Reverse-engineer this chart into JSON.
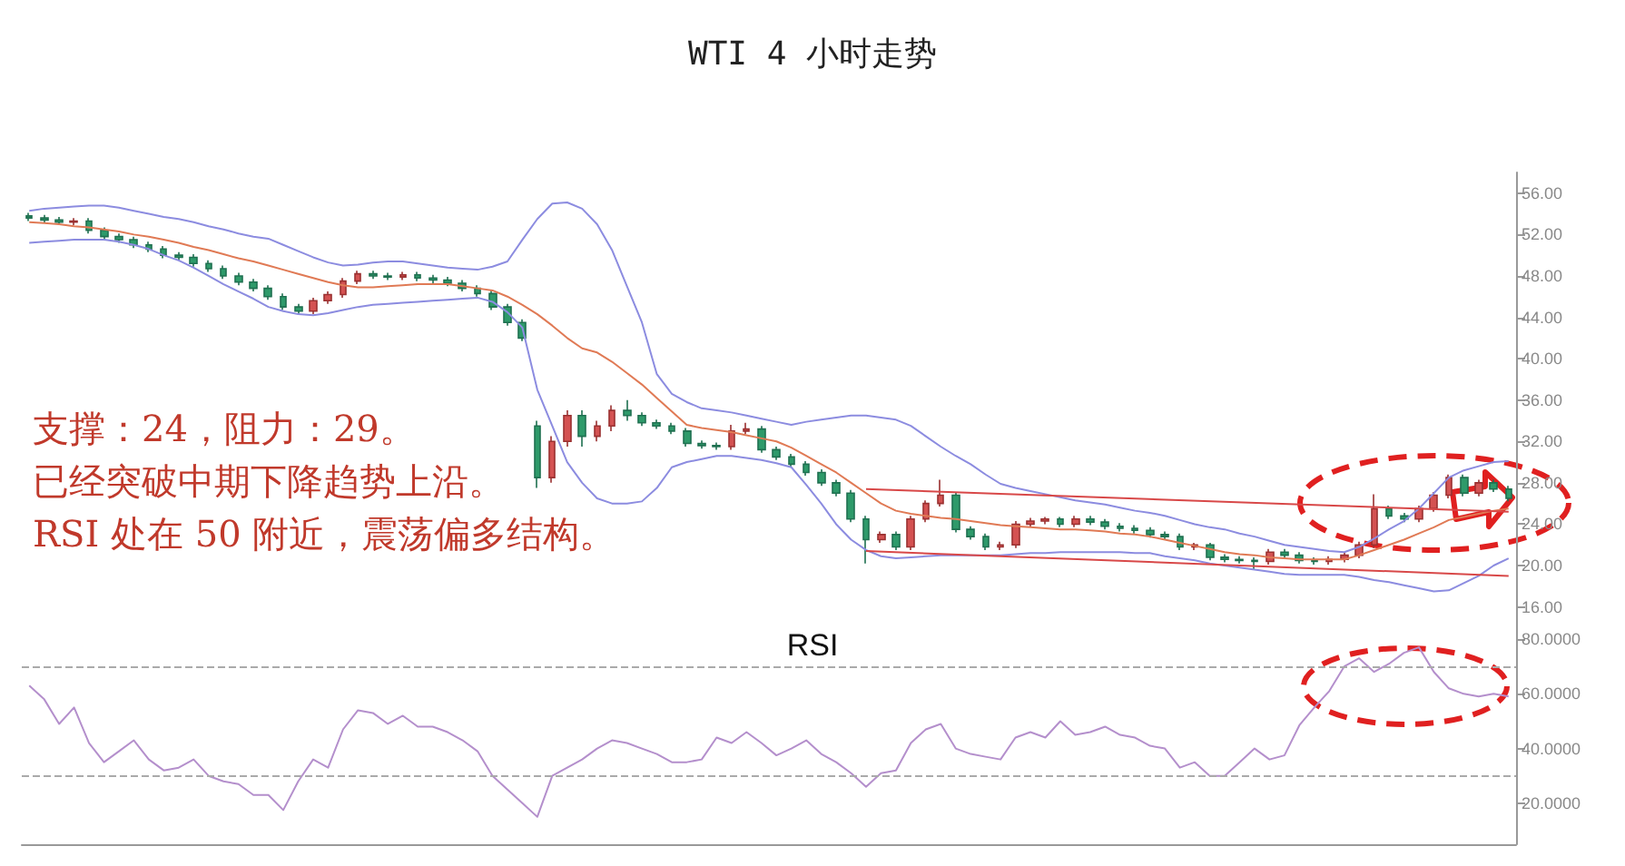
{
  "chart_data": [
    {
      "type": "candlestick",
      "title": "WTI 4 小时走势",
      "categories": [
        null,
        null,
        null,
        null,
        null,
        null,
        null,
        null,
        null,
        null,
        null,
        null,
        null,
        null,
        null,
        null,
        null,
        null,
        null,
        null,
        null,
        null,
        null,
        null,
        null,
        null,
        null,
        null,
        null,
        null,
        null,
        null,
        null,
        null,
        null,
        null,
        null,
        null,
        null,
        null,
        null,
        null,
        null,
        null,
        null,
        null,
        null,
        null,
        null,
        null,
        null,
        null,
        null,
        null,
        null,
        null,
        null,
        null,
        null,
        null,
        null,
        null,
        null,
        null,
        null,
        null,
        null,
        null,
        null,
        null,
        null,
        null,
        null,
        null,
        null,
        null,
        null,
        null,
        null,
        null,
        null,
        null,
        null,
        null,
        null,
        null,
        null,
        null,
        null,
        null,
        null,
        null,
        null,
        null,
        null,
        null,
        null,
        null,
        null,
        null
      ],
      "ylim": [
        15,
        58
      ],
      "yticks": [
        {
          "value": 16,
          "label": "16.00"
        },
        {
          "value": 20,
          "label": "20.00"
        },
        {
          "value": 24,
          "label": "24.00"
        },
        {
          "value": 28,
          "label": "28.00"
        },
        {
          "value": 32,
          "label": "32.00"
        },
        {
          "value": 36,
          "label": "36.00"
        },
        {
          "value": 40,
          "label": "40.00"
        },
        {
          "value": 44,
          "label": "44.00"
        },
        {
          "value": 48,
          "label": "48.00"
        },
        {
          "value": 52,
          "label": "52.00"
        },
        {
          "value": 56,
          "label": "56.00"
        }
      ],
      "tick_labels": "y",
      "marker": "none",
      "annotations": [
        "支撑：24，阻力：29。",
        "已经突破中期下降趋势上沿。",
        "RSI 处在 50 附近，震荡偏多结构。"
      ],
      "series": [
        {
          "ohlc": [
            [
              53.8,
              54.1,
              53.3,
              53.6
            ],
            [
              53.6,
              53.9,
              53.1,
              53.4
            ],
            [
              53.4,
              53.7,
              52.9,
              53.2
            ],
            [
              53.2,
              53.6,
              52.9,
              53.3
            ],
            [
              53.3,
              53.6,
              52.1,
              52.4
            ],
            [
              52.4,
              52.7,
              51.5,
              51.8
            ],
            [
              51.8,
              52.1,
              51.2,
              51.5
            ],
            [
              51.5,
              51.8,
              50.7,
              51.0
            ],
            [
              51.0,
              51.3,
              50.3,
              50.6
            ],
            [
              50.6,
              50.9,
              49.7,
              50.0
            ],
            [
              50.0,
              50.3,
              49.5,
              49.8
            ],
            [
              49.8,
              50.1,
              48.9,
              49.2
            ],
            [
              49.2,
              49.5,
              48.4,
              48.7
            ],
            [
              48.7,
              49.0,
              47.7,
              48.0
            ],
            [
              48.0,
              48.3,
              47.1,
              47.4
            ],
            [
              47.4,
              47.7,
              46.5,
              46.8
            ],
            [
              46.8,
              47.1,
              45.7,
              46.0
            ],
            [
              46.0,
              46.3,
              44.7,
              45.0
            ],
            [
              45.0,
              45.3,
              44.3,
              44.6
            ],
            [
              44.6,
              45.9,
              44.3,
              45.6
            ],
            [
              45.6,
              46.5,
              45.3,
              46.2
            ],
            [
              46.2,
              47.8,
              45.9,
              47.5
            ],
            [
              47.5,
              48.5,
              47.2,
              48.2
            ],
            [
              48.2,
              48.5,
              47.7,
              48.0
            ],
            [
              48.0,
              48.3,
              47.6,
              47.9
            ],
            [
              47.9,
              48.4,
              47.6,
              48.1
            ],
            [
              48.1,
              48.4,
              47.5,
              47.8
            ],
            [
              47.8,
              48.1,
              47.3,
              47.6
            ],
            [
              47.6,
              47.9,
              47.0,
              47.3
            ],
            [
              47.3,
              47.6,
              46.5,
              46.8
            ],
            [
              46.8,
              47.1,
              46.0,
              46.3
            ],
            [
              46.3,
              46.6,
              44.7,
              45.0
            ],
            [
              45.0,
              45.3,
              43.2,
              43.5
            ],
            [
              43.5,
              43.8,
              41.7,
              42.0
            ],
            [
              33.5,
              34.0,
              27.5,
              28.5
            ],
            [
              28.5,
              32.5,
              28.0,
              32.0
            ],
            [
              32.0,
              35.0,
              31.5,
              34.5
            ],
            [
              34.5,
              35.0,
              31.5,
              32.5
            ],
            [
              32.5,
              34.0,
              32.0,
              33.5
            ],
            [
              33.5,
              35.5,
              33.0,
              35.0
            ],
            [
              35.0,
              36.0,
              34.0,
              34.5
            ],
            [
              34.5,
              34.8,
              33.5,
              33.8
            ],
            [
              33.8,
              34.1,
              33.2,
              33.5
            ],
            [
              33.5,
              33.8,
              32.7,
              33.0
            ],
            [
              33.0,
              33.3,
              31.5,
              31.8
            ],
            [
              31.8,
              32.1,
              31.3,
              31.6
            ],
            [
              31.6,
              31.9,
              31.2,
              31.5
            ],
            [
              31.5,
              33.6,
              31.2,
              33.0
            ],
            [
              33.0,
              33.8,
              32.7,
              33.2
            ],
            [
              33.2,
              33.5,
              30.9,
              31.2
            ],
            [
              31.2,
              31.5,
              30.2,
              30.5
            ],
            [
              30.5,
              30.8,
              29.5,
              29.8
            ],
            [
              29.8,
              30.1,
              28.7,
              29.0
            ],
            [
              29.0,
              29.3,
              27.7,
              28.0
            ],
            [
              28.0,
              28.3,
              26.7,
              27.0
            ],
            [
              27.0,
              27.3,
              24.2,
              24.5
            ],
            [
              24.5,
              24.8,
              20.2,
              22.5
            ],
            [
              22.5,
              23.3,
              22.2,
              23.0
            ],
            [
              23.0,
              23.3,
              21.5,
              21.8
            ],
            [
              21.8,
              24.8,
              21.5,
              24.5
            ],
            [
              24.5,
              26.3,
              24.2,
              26.0
            ],
            [
              26.0,
              28.3,
              25.7,
              26.8
            ],
            [
              26.8,
              27.1,
              23.2,
              23.5
            ],
            [
              23.5,
              23.8,
              22.5,
              22.8
            ],
            [
              22.8,
              23.1,
              21.5,
              21.8
            ],
            [
              21.8,
              22.3,
              21.5,
              22.0
            ],
            [
              22.0,
              24.3,
              21.7,
              24.0
            ],
            [
              24.0,
              24.6,
              23.7,
              24.3
            ],
            [
              24.3,
              24.7,
              24.0,
              24.5
            ],
            [
              24.5,
              24.7,
              23.7,
              24.0
            ],
            [
              24.0,
              24.8,
              23.7,
              24.5
            ],
            [
              24.5,
              24.8,
              23.9,
              24.2
            ],
            [
              24.2,
              24.5,
              23.5,
              23.8
            ],
            [
              23.8,
              24.1,
              23.3,
              23.6
            ],
            [
              23.6,
              23.9,
              23.1,
              23.4
            ],
            [
              23.4,
              23.7,
              22.7,
              23.0
            ],
            [
              23.0,
              23.3,
              22.5,
              22.8
            ],
            [
              22.8,
              23.1,
              21.5,
              21.8
            ],
            [
              21.8,
              22.2,
              21.5,
              22.0
            ],
            [
              22.0,
              22.2,
              20.5,
              20.8
            ],
            [
              20.8,
              21.1,
              20.3,
              20.6
            ],
            [
              20.6,
              20.9,
              20.2,
              20.5
            ],
            [
              20.5,
              20.8,
              19.6,
              20.4
            ],
            [
              20.4,
              21.6,
              20.1,
              21.3
            ],
            [
              21.3,
              21.6,
              20.7,
              21.0
            ],
            [
              21.0,
              21.3,
              20.2,
              20.5
            ],
            [
              20.5,
              20.8,
              20.1,
              20.4
            ],
            [
              20.4,
              20.9,
              20.1,
              20.6
            ],
            [
              20.6,
              21.3,
              20.3,
              21.0
            ],
            [
              21.0,
              22.3,
              20.7,
              22.0
            ],
            [
              22.0,
              26.9,
              21.7,
              25.5
            ],
            [
              25.5,
              25.8,
              24.5,
              24.8
            ],
            [
              24.8,
              25.1,
              24.2,
              24.5
            ],
            [
              24.5,
              25.8,
              24.2,
              25.5
            ],
            [
              25.5,
              27.1,
              25.2,
              26.8
            ],
            [
              26.8,
              28.8,
              26.5,
              28.5
            ],
            [
              28.5,
              28.8,
              26.7,
              27.0
            ],
            [
              27.0,
              28.3,
              26.7,
              28.0
            ],
            [
              28.0,
              28.3,
              27.1,
              27.4
            ],
            [
              27.4,
              27.7,
              26.2,
              26.5
            ]
          ]
        },
        {
          "type": "line",
          "color": "#8c8ce0",
          "values": [
            54.3,
            54.5,
            54.6,
            54.7,
            54.8,
            54.8,
            54.6,
            54.3,
            54.0,
            53.7,
            53.5,
            53.2,
            52.8,
            52.5,
            52.1,
            51.8,
            51.6,
            51.0,
            50.4,
            49.8,
            49.3,
            49.0,
            49.1,
            49.3,
            49.4,
            49.4,
            49.2,
            49.0,
            48.8,
            48.7,
            48.6,
            48.9,
            49.4,
            51.5,
            53.5,
            55.0,
            55.1,
            54.5,
            53.0,
            50.5,
            47.0,
            43.5,
            38.5,
            36.6,
            35.8,
            35.2,
            35.0,
            34.8,
            34.5,
            34.2,
            33.9,
            33.6,
            33.9,
            34.1,
            34.3,
            34.5,
            34.5,
            34.3,
            34.1,
            33.5,
            32.5,
            31.5,
            30.6,
            29.8,
            28.8,
            27.9,
            27.5,
            27.2,
            26.9,
            26.6,
            26.3,
            26.1,
            25.9,
            25.6,
            25.3,
            25.1,
            24.8,
            24.4,
            24.0,
            23.7,
            23.5,
            23.1,
            22.8,
            22.4,
            22.0,
            21.8,
            21.6,
            21.4,
            21.3,
            21.8,
            22.6,
            23.5,
            24.3,
            25.5,
            27.0,
            28.5,
            29.2,
            29.6,
            30.0,
            30.1
          ]
        },
        {
          "type": "line",
          "color": "#e07a55",
          "values": [
            53.2,
            53.1,
            53.0,
            52.8,
            52.7,
            52.5,
            52.3,
            52.0,
            51.8,
            51.5,
            51.2,
            50.8,
            50.5,
            50.1,
            49.7,
            49.4,
            49.0,
            48.6,
            48.2,
            47.8,
            47.4,
            47.1,
            46.9,
            46.9,
            47.0,
            47.1,
            47.2,
            47.2,
            47.2,
            47.0,
            46.8,
            46.6,
            46.0,
            45.2,
            44.3,
            43.2,
            42.0,
            41.0,
            40.6,
            39.7,
            38.6,
            37.5,
            36.2,
            34.9,
            33.6,
            33.3,
            33.1,
            32.9,
            32.6,
            32.3,
            32.0,
            31.4,
            30.6,
            29.8,
            29.0,
            28.0,
            27.0,
            26.0,
            25.3,
            25.0,
            24.8,
            24.6,
            24.5,
            24.3,
            24.1,
            23.9,
            23.8,
            23.7,
            23.6,
            23.5,
            23.5,
            23.4,
            23.3,
            23.1,
            23.0,
            22.8,
            22.5,
            22.2,
            21.9,
            21.6,
            21.3,
            21.1,
            21.0,
            20.8,
            20.7,
            20.6,
            20.6,
            20.6,
            20.6,
            21.0,
            21.5,
            22.0,
            22.5,
            23.1,
            23.7,
            24.4,
            24.7,
            25.0,
            25.3,
            25.5
          ]
        },
        {
          "type": "line",
          "color": "#8c8ce0",
          "values": [
            51.2,
            51.3,
            51.4,
            51.5,
            51.5,
            51.5,
            51.3,
            51.0,
            50.6,
            50.0,
            49.5,
            48.8,
            48.0,
            47.2,
            46.5,
            45.8,
            45.0,
            44.6,
            44.3,
            44.2,
            44.4,
            44.7,
            45.0,
            45.2,
            45.3,
            45.4,
            45.5,
            45.6,
            45.7,
            45.8,
            45.9,
            45.5,
            44.5,
            43.0,
            37.0,
            33.5,
            30.0,
            28.0,
            26.5,
            26.0,
            26.0,
            26.2,
            27.5,
            29.5,
            30.0,
            30.3,
            30.6,
            30.6,
            30.4,
            30.2,
            29.9,
            29.5,
            27.8,
            26.0,
            24.0,
            22.5,
            21.5,
            20.9,
            20.7,
            20.8,
            20.9,
            21.0,
            21.0,
            21.0,
            21.0,
            21.0,
            21.1,
            21.2,
            21.2,
            21.3,
            21.3,
            21.3,
            21.3,
            21.3,
            21.2,
            21.2,
            20.9,
            20.7,
            20.5,
            20.2,
            20.0,
            19.8,
            19.6,
            19.4,
            19.2,
            19.1,
            19.1,
            19.1,
            19.1,
            18.9,
            18.6,
            18.4,
            18.1,
            17.8,
            17.5,
            17.6,
            18.3,
            19.0,
            20.0,
            20.7
          ]
        },
        {
          "type": "line",
          "color": "#d84848",
          "values": [
            null,
            null,
            null,
            null,
            null,
            null,
            null,
            null,
            null,
            null,
            null,
            null,
            null,
            null,
            null,
            null,
            null,
            null,
            null,
            null,
            null,
            null,
            null,
            null,
            null,
            null,
            null,
            null,
            null,
            null,
            null,
            null,
            null,
            null,
            null,
            null,
            null,
            null,
            null,
            null,
            null,
            null,
            null,
            null,
            null,
            null,
            null,
            null,
            null,
            null,
            null,
            null,
            null,
            null,
            null,
            null,
            27.4,
            null,
            null,
            null,
            null,
            null,
            null,
            null,
            null,
            null,
            null,
            null,
            null,
            null,
            null,
            null,
            null,
            null,
            null,
            null,
            null,
            null,
            null,
            null,
            null,
            null,
            null,
            null,
            null,
            null,
            null,
            null,
            null,
            null,
            null,
            null,
            null,
            null,
            null,
            null,
            null,
            null,
            null,
            25.2
          ]
        },
        {
          "type": "line",
          "color": "#d84848",
          "values": [
            null,
            null,
            null,
            null,
            null,
            null,
            null,
            null,
            null,
            null,
            null,
            null,
            null,
            null,
            null,
            null,
            null,
            null,
            null,
            null,
            null,
            null,
            null,
            null,
            null,
            null,
            null,
            null,
            null,
            null,
            null,
            null,
            null,
            null,
            null,
            null,
            null,
            null,
            null,
            null,
            null,
            null,
            null,
            null,
            null,
            null,
            null,
            null,
            null,
            null,
            null,
            null,
            null,
            null,
            null,
            null,
            21.4,
            null,
            null,
            null,
            null,
            null,
            null,
            null,
            null,
            null,
            null,
            null,
            null,
            null,
            null,
            null,
            null,
            null,
            null,
            null,
            null,
            null,
            null,
            null,
            null,
            null,
            null,
            null,
            null,
            null,
            null,
            null,
            null,
            null,
            null,
            null,
            null,
            null,
            null,
            null,
            null,
            null,
            null,
            19.0
          ]
        }
      ]
    },
    {
      "type": "line",
      "title": "RSI",
      "categories": [
        null,
        null,
        null,
        null,
        null,
        null,
        null,
        null,
        null,
        null,
        null,
        null,
        null,
        null,
        null,
        null,
        null,
        null,
        null,
        null,
        null,
        null,
        null,
        null,
        null,
        null,
        null,
        null,
        null,
        null,
        null,
        null,
        null,
        null,
        null,
        null,
        null,
        null,
        null,
        null,
        null,
        null,
        null,
        null,
        null,
        null,
        null,
        null,
        null,
        null,
        null,
        null,
        null,
        null,
        null,
        null,
        null,
        null,
        null,
        null,
        null,
        null,
        null,
        null,
        null,
        null,
        null,
        null,
        null,
        null,
        null,
        null,
        null,
        null,
        null,
        null,
        null,
        null,
        null,
        null,
        null,
        null,
        null,
        null,
        null,
        null,
        null,
        null,
        null,
        null,
        null,
        null,
        null,
        null,
        null,
        null,
        null,
        null,
        null,
        null
      ],
      "ylim": [
        5,
        88
      ],
      "yticks": [
        {
          "value": 20,
          "label": "20.0000"
        },
        {
          "value": 40,
          "label": "40.0000"
        },
        {
          "value": 60,
          "label": "60.0000"
        },
        {
          "value": 80,
          "label": "80.0000"
        }
      ],
      "tick_labels": "y",
      "marker": "none",
      "ref_lines": [
        {
          "axis": "y",
          "value": 70,
          "color": "#aaaaaa",
          "line_style": "dashed"
        },
        {
          "axis": "y",
          "value": 30,
          "color": "#aaaaaa",
          "line_style": "dashed"
        }
      ],
      "series": [
        {
          "color": "#b48fcc",
          "values": [
            63,
            58,
            49,
            55,
            42,
            35,
            39,
            43,
            36,
            32,
            33,
            36,
            30,
            28,
            27,
            23,
            23,
            17.5,
            28,
            36,
            33,
            47,
            54,
            53,
            49,
            52,
            48,
            48,
            46,
            43,
            39,
            30,
            25,
            20,
            15,
            30,
            33,
            36,
            40,
            43,
            42,
            40,
            38,
            35,
            35,
            36,
            44,
            42,
            46,
            42,
            37.5,
            40,
            43,
            38,
            35,
            31,
            26,
            31,
            32,
            42,
            47,
            49,
            40,
            38,
            37,
            36,
            44,
            46,
            44,
            50,
            45,
            46,
            48,
            45,
            44,
            41,
            40,
            33,
            35,
            30,
            30,
            35,
            40,
            36,
            37.5,
            48.5,
            55,
            61,
            70,
            73,
            68,
            71,
            75,
            77,
            68,
            62,
            60,
            59,
            60,
            59
          ]
        }
      ]
    }
  ]
}
